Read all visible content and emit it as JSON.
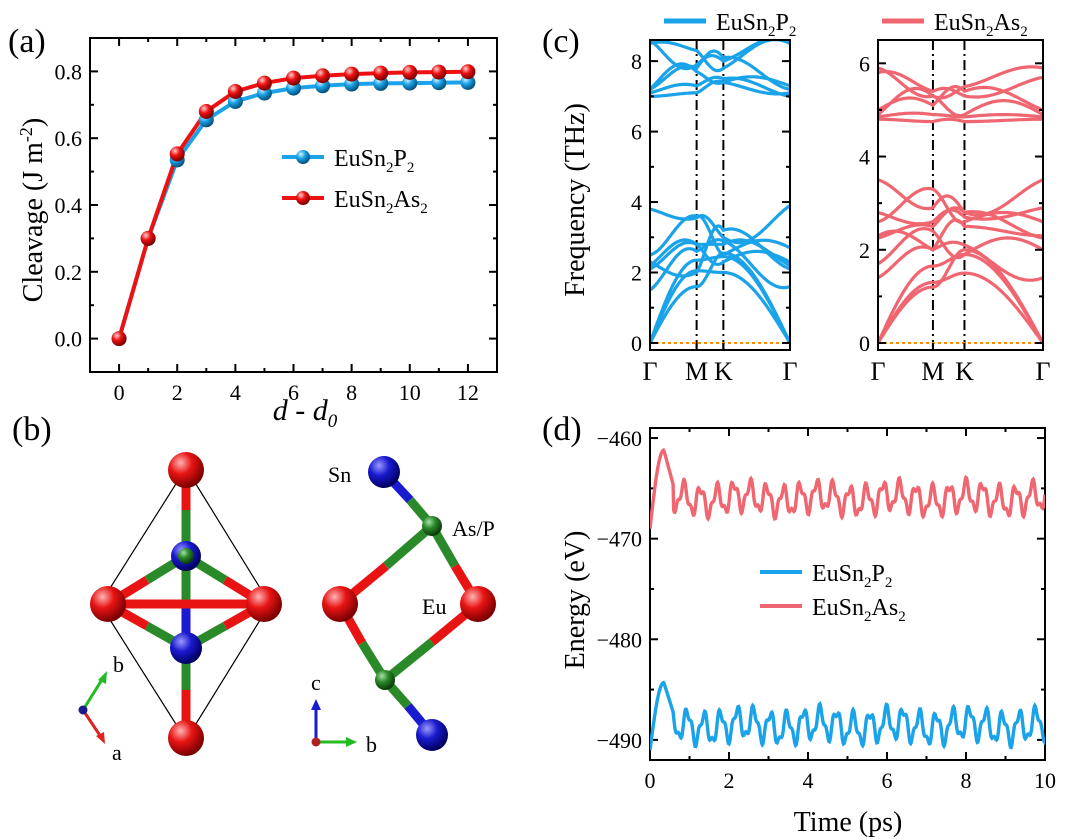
{
  "colors": {
    "blue": "#1aa3e8",
    "red": "#ee1111",
    "pink": "#f06670",
    "green": "#2a8a2a",
    "navy": "#1515c8",
    "orange": "#ff8c00"
  },
  "panel_labels": {
    "a": "(a)",
    "b": "(b)",
    "c": "(c)",
    "d": "(d)"
  },
  "chart_data": [
    {
      "id": "a",
      "type": "line",
      "xlabel": "d - d",
      "xlabel_sub": "0",
      "ylabel": "Cleavage (J m",
      "ylabel_sup": "-2",
      "ylabel_end": ")",
      "xlim": [
        -1,
        13
      ],
      "ylim": [
        -0.1,
        0.9
      ],
      "xticks": [
        "0",
        "2",
        "4",
        "6",
        "8",
        "10",
        "12"
      ],
      "yticks": [
        "0.0",
        "0.2",
        "0.4",
        "0.6",
        "0.8"
      ],
      "x": [
        0,
        1,
        2,
        3,
        4,
        5,
        6,
        7,
        8,
        9,
        10,
        11,
        12
      ],
      "legend_position": "right",
      "series": [
        {
          "name": "EuSn2P2",
          "name_base": "EuSn",
          "name_sub1": "2",
          "name_mid": "P",
          "name_sub2": "2",
          "color": "#1aa3e8",
          "values": [
            0.0,
            0.3,
            0.535,
            0.655,
            0.71,
            0.735,
            0.75,
            0.757,
            0.762,
            0.764,
            0.765,
            0.766,
            0.767
          ]
        },
        {
          "name": "EuSn2As2",
          "name_base": "EuSn",
          "name_sub1": "2",
          "name_mid": "As",
          "name_sub2": "2",
          "color": "#ee1111",
          "values": [
            0.0,
            0.3,
            0.553,
            0.68,
            0.74,
            0.765,
            0.78,
            0.787,
            0.792,
            0.795,
            0.797,
            0.798,
            0.799
          ]
        }
      ]
    },
    {
      "id": "c",
      "type": "line",
      "ylabel": "Frequency (THz)",
      "xticks": [
        "Γ",
        "M",
        "K",
        "Γ"
      ],
      "subplots": [
        {
          "name": "EuSn2P2",
          "name_base": "EuSn",
          "name_sub1": "2",
          "name_mid": "P",
          "name_sub2": "2",
          "color": "#1aa3e8",
          "ylim": [
            -0.2,
            8.6
          ],
          "yticks": [
            "0",
            "2",
            "4",
            "6",
            "8"
          ]
        },
        {
          "name": "EuSn2As2",
          "name_base": "EuSn",
          "name_sub1": "2",
          "name_mid": "As",
          "name_sub2": "2",
          "color": "#f06670",
          "ylim": [
            -0.15,
            6.5
          ],
          "yticks": [
            "0",
            "2",
            "4",
            "6"
          ]
        }
      ]
    },
    {
      "id": "d",
      "type": "line",
      "xlabel": "Time (ps)",
      "ylabel": "Energy (eV)",
      "xlim": [
        0,
        10
      ],
      "ylim": [
        -492,
        -459
      ],
      "xticks": [
        "0",
        "2",
        "4",
        "6",
        "8",
        "10"
      ],
      "yticks": [
        "−460",
        "−470",
        "−480",
        "−490"
      ],
      "legend_position": "center",
      "series": [
        {
          "name": "EuSn2P2",
          "name_base": "EuSn",
          "name_sub1": "2",
          "name_mid": "P",
          "name_sub2": "2",
          "color": "#1aa3e8",
          "mean": -488.6
        },
        {
          "name": "EuSn2As2",
          "name_base": "EuSn",
          "name_sub1": "2",
          "name_mid": "As",
          "name_sub2": "2",
          "color": "#f06670",
          "mean": -466.0
        }
      ]
    }
  ],
  "structure": {
    "labels": {
      "sn": "Sn",
      "asp": "As/P",
      "eu": "Eu"
    },
    "axes_left": {
      "b": "b",
      "a": "a"
    },
    "axes_right": {
      "c": "c",
      "b": "b"
    }
  }
}
